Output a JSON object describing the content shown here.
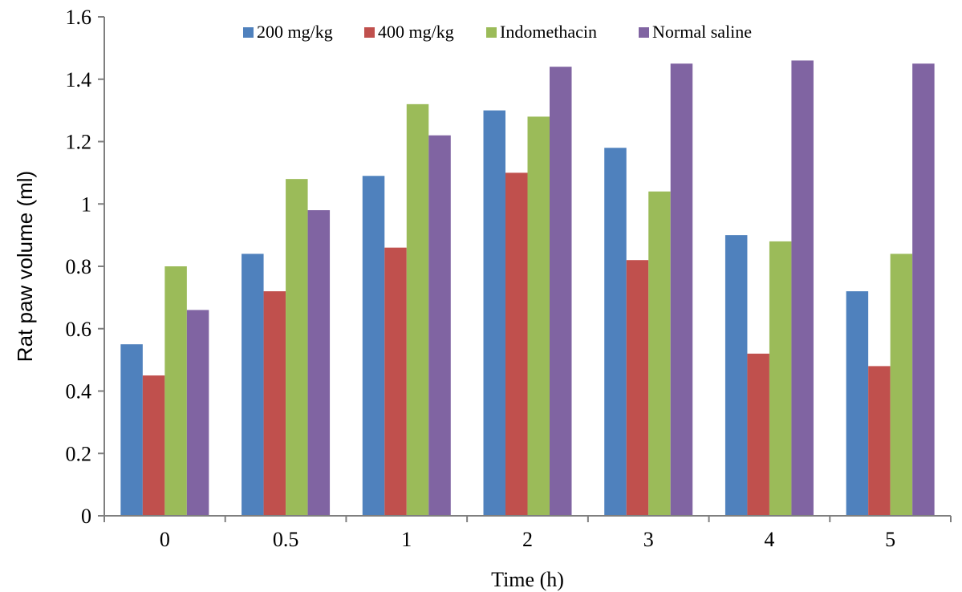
{
  "chart_data": {
    "type": "bar",
    "title": "",
    "xlabel": "Time (h)",
    "ylabel": "Rat paw volume (ml)",
    "categories": [
      "0",
      "0.5",
      "1",
      "2",
      "3",
      "4",
      "5"
    ],
    "ylim": [
      0,
      1.6
    ],
    "yticks": [
      "0",
      "0.2",
      "0.4",
      "0.6",
      "0.8",
      "1",
      "1.2",
      "1.4",
      "1.6"
    ],
    "grid": false,
    "legend_position": "top",
    "series": [
      {
        "name": "200 mg/kg",
        "color": "#4f81bd",
        "values": [
          0.55,
          0.84,
          1.09,
          1.3,
          1.18,
          0.9,
          0.72
        ]
      },
      {
        "name": "400 mg/kg",
        "color": "#c0504d",
        "values": [
          0.45,
          0.72,
          0.86,
          1.1,
          0.82,
          0.52,
          0.48
        ]
      },
      {
        "name": "Indomethacin",
        "color": "#9bbb59",
        "values": [
          0.8,
          1.08,
          1.32,
          1.28,
          1.04,
          0.88,
          0.84
        ]
      },
      {
        "name": "Normal saline",
        "color": "#8064a2",
        "values": [
          0.66,
          0.98,
          1.22,
          1.44,
          1.45,
          1.46,
          1.45
        ]
      }
    ]
  }
}
